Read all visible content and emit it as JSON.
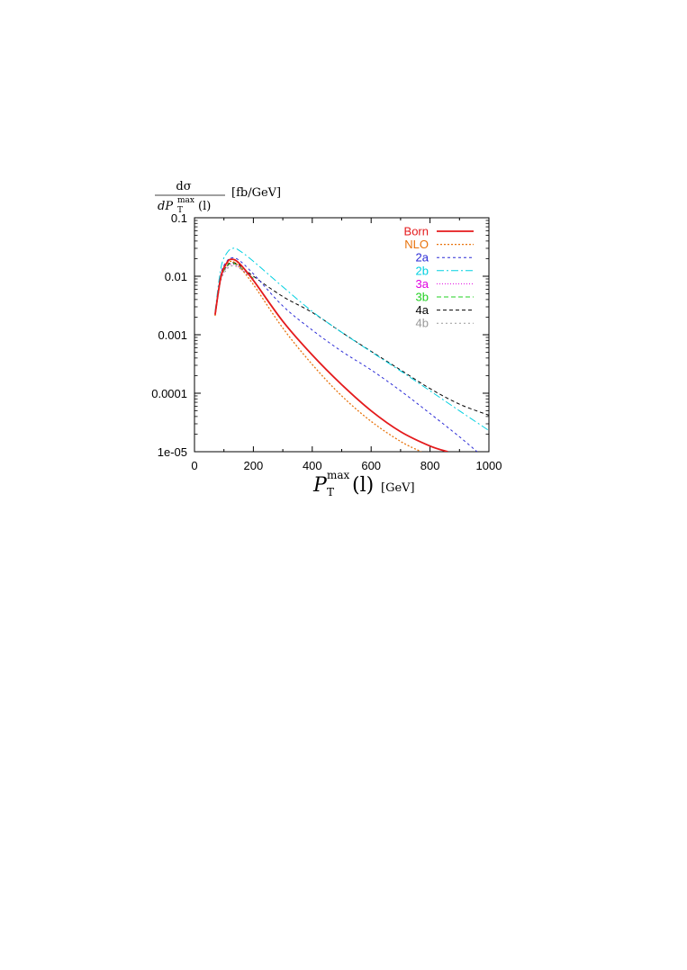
{
  "chart_data": {
    "type": "line",
    "xlabel_main": "P",
    "xlabel_sup": "max",
    "xlabel_sub": "T",
    "xlabel_arg": "(l)",
    "xlabel_unit": "[GeV]",
    "ylabel_num": "dσ",
    "ylabel_den_main": "dP",
    "ylabel_den_sup": "max",
    "ylabel_den_sub": "T",
    "ylabel_den_arg": "(l)",
    "ylabel_unit": "[fb/GeV]",
    "xlim": [
      0,
      1000
    ],
    "ylim": [
      1e-05,
      0.1
    ],
    "yscale": "log",
    "grid": false,
    "legend_position": "top-right",
    "xticks": [
      0,
      200,
      400,
      600,
      800,
      1000
    ],
    "xtick_labels": [
      "0",
      "200",
      "400",
      "600",
      "800",
      "1000"
    ],
    "yticks": [
      1e-05,
      0.0001,
      0.001,
      0.01,
      0.1
    ],
    "ytick_labels": [
      "1e-05",
      "0.0001",
      "0.001",
      "0.01",
      "0.1"
    ],
    "series": [
      {
        "name": "Born",
        "color": "#e41a1c",
        "dash": "",
        "width": 1.8,
        "x": [
          70,
          90,
          110,
          125,
          150,
          200,
          300,
          400,
          500,
          600,
          700,
          800,
          860
        ],
        "y": [
          0.0022,
          0.01,
          0.017,
          0.0195,
          0.017,
          0.0085,
          0.0017,
          0.00045,
          0.00014,
          5e-05,
          2.2e-05,
          1.25e-05,
          1e-05
        ]
      },
      {
        "name": "NLO",
        "color": "#e8730c",
        "dash": "2,2",
        "width": 1.3,
        "x": [
          70,
          90,
          110,
          125,
          150,
          200,
          300,
          400,
          500,
          600,
          700,
          770
        ],
        "y": [
          0.0021,
          0.0095,
          0.016,
          0.018,
          0.015,
          0.0072,
          0.0013,
          0.00031,
          9e-05,
          3.3e-05,
          1.5e-05,
          1e-05
        ]
      },
      {
        "name": "2a",
        "color": "#2b2bd6",
        "dash": "3,3",
        "width": 1,
        "x": [
          70,
          90,
          110,
          125,
          150,
          200,
          300,
          400,
          500,
          600,
          700,
          800,
          900,
          960
        ],
        "y": [
          0.0023,
          0.011,
          0.018,
          0.0205,
          0.019,
          0.011,
          0.0031,
          0.0012,
          0.00052,
          0.00025,
          0.00011,
          4.5e-05,
          1.8e-05,
          1e-05
        ]
      },
      {
        "name": "2b",
        "color": "#00d0e0",
        "dash": "8,3,2,3",
        "width": 1,
        "x": [
          70,
          90,
          110,
          130,
          150,
          200,
          300,
          400,
          500,
          600,
          700,
          800,
          900,
          1000
        ],
        "y": [
          0.0025,
          0.014,
          0.025,
          0.03,
          0.028,
          0.018,
          0.0066,
          0.0025,
          0.0011,
          0.00051,
          0.00024,
          0.00011,
          5e-05,
          2.3e-05
        ]
      },
      {
        "name": "3a",
        "color": "#e000e0",
        "dash": "1,2",
        "width": 1,
        "x": [
          70,
          90,
          110,
          125,
          150,
          200
        ],
        "y": [
          0.0022,
          0.009,
          0.014,
          0.016,
          0.0145,
          0.009
        ]
      },
      {
        "name": "3b",
        "color": "#20d020",
        "dash": "5,3",
        "width": 1,
        "x": [
          70,
          90,
          110,
          125,
          150,
          200
        ],
        "y": [
          0.0022,
          0.0092,
          0.0145,
          0.0165,
          0.015,
          0.0092
        ]
      },
      {
        "name": "4a",
        "color": "#000000",
        "dash": "4,3",
        "width": 1,
        "x": [
          70,
          90,
          110,
          125,
          150,
          200,
          300,
          400,
          500,
          600,
          700,
          800,
          900,
          1000
        ],
        "y": [
          0.0023,
          0.0095,
          0.015,
          0.017,
          0.0158,
          0.01,
          0.0045,
          0.0024,
          0.0011,
          0.00052,
          0.00025,
          0.00012,
          6.5e-05,
          4.2e-05
        ]
      },
      {
        "name": "4b",
        "color": "#999999",
        "dash": "2,3",
        "width": 1,
        "x": [
          70,
          90,
          110,
          125,
          150,
          200
        ],
        "y": [
          0.0021,
          0.0085,
          0.013,
          0.015,
          0.014,
          0.0088
        ]
      }
    ]
  }
}
